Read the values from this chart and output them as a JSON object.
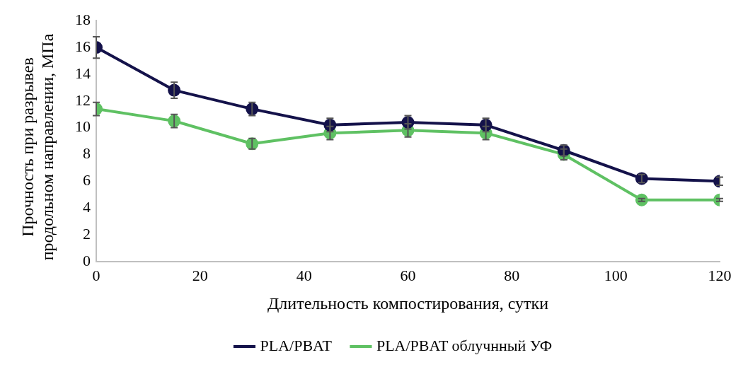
{
  "chart_data": {
    "type": "line",
    "xlabel": "Длительность компостирования, сутки",
    "ylabel": "Прочность при разрывев продольном направлении, МПа",
    "x": [
      0,
      15,
      30,
      45,
      60,
      75,
      90,
      105,
      120
    ],
    "series": [
      {
        "name": "PLA/PBAT",
        "color": "#14124a",
        "values": [
          16,
          12.8,
          11.4,
          10.2,
          10.4,
          10.2,
          8.3,
          6.2,
          6.0
        ],
        "errors": [
          0.8,
          0.6,
          0.5,
          0.5,
          0.5,
          0.5,
          0.4,
          0.3,
          0.3
        ]
      },
      {
        "name": "PLA/PBAT облучнный УФ",
        "color": "#5fc163",
        "values": [
          11.4,
          10.5,
          8.8,
          9.6,
          9.8,
          9.6,
          8.0,
          4.6,
          4.6
        ],
        "errors": [
          0.5,
          0.5,
          0.4,
          0.5,
          0.5,
          0.5,
          0.4,
          0.1,
          0.1
        ]
      }
    ],
    "xlim": [
      0,
      120
    ],
    "xticks": [
      0,
      20,
      40,
      60,
      80,
      100,
      120
    ],
    "ylim": [
      0,
      18
    ],
    "yticks": [
      0,
      2,
      4,
      6,
      8,
      10,
      12,
      14,
      16,
      18
    ],
    "grid": false,
    "legend": "bottom",
    "marker": "circle",
    "line_style": "solid"
  }
}
